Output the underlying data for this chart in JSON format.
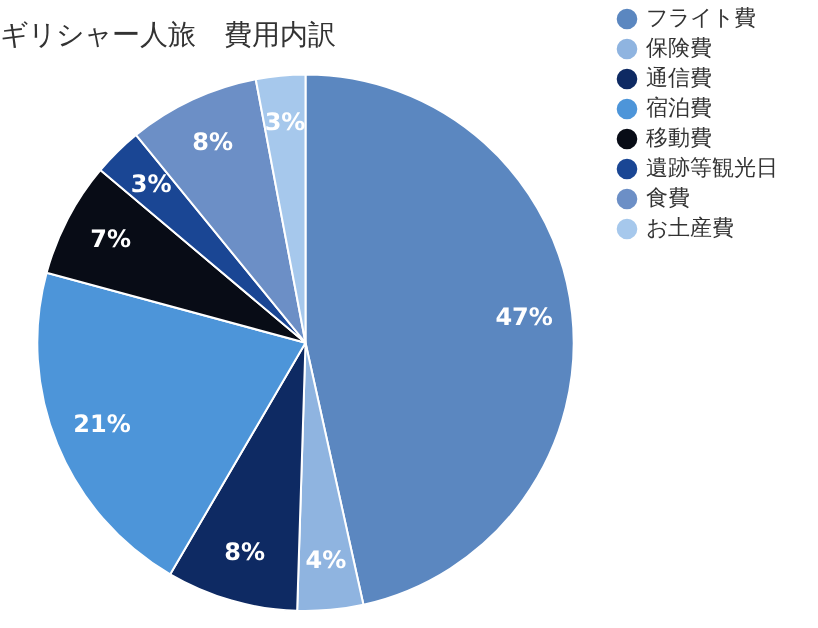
{
  "chart_data": {
    "type": "pie",
    "title": "ギリシャー人旅　費用内訳",
    "categories": [
      "フライト費",
      "保険費",
      "通信費",
      "宿泊費",
      "移動費",
      "遺跡等観光日",
      "食費",
      "お土産費"
    ],
    "values": [
      47,
      4,
      8,
      21,
      7,
      3,
      8,
      3
    ],
    "value_labels": [
      "47%",
      "4%",
      "8%",
      "21%",
      "7%",
      "3%",
      "8%",
      "3%"
    ],
    "colors": [
      "#5b87c0",
      "#8fb4e0",
      "#0e2a63",
      "#4d95d9",
      "#080c16",
      "#1a4694",
      "#6c8fc6",
      "#a6c8ec"
    ],
    "legend": "top right"
  }
}
